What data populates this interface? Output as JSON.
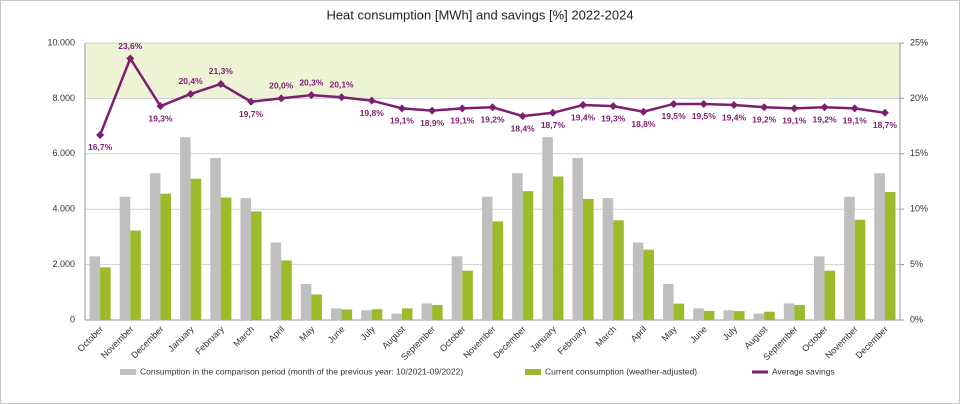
{
  "chart_data": {
    "type": "bar_line",
    "title": "Heat consumption [MWh] and savings [%] 2022-2024",
    "categories": [
      "October",
      "November",
      "December",
      "January",
      "February",
      "March",
      "April",
      "May",
      "June",
      "July",
      "August",
      "September",
      "October",
      "November",
      "December",
      "January",
      "February",
      "March",
      "April",
      "May",
      "June",
      "July",
      "August",
      "September",
      "October",
      "November",
      "December"
    ],
    "series": [
      {
        "name": "Consumption in the comparison period (month of the previous year: 10/2021-09/2022)",
        "color": "#bfbfbf",
        "type": "bar",
        "values": [
          2300,
          4450,
          5300,
          6600,
          5850,
          4400,
          2800,
          1300,
          420,
          350,
          230,
          600,
          2300,
          4450,
          5300,
          6600,
          5850,
          4400,
          2800,
          1300,
          420,
          350,
          230,
          600,
          2300,
          4450,
          5300
        ]
      },
      {
        "name": "Current consumption (weather-adjusted)",
        "color": "#9bbb2a",
        "type": "bar",
        "values": [
          1900,
          3230,
          4560,
          5100,
          4420,
          3920,
          2150,
          920,
          380,
          390,
          420,
          540,
          1780,
          3560,
          4650,
          5180,
          4370,
          3600,
          2540,
          590,
          330,
          320,
          300,
          540,
          1780,
          3620,
          4620
        ]
      },
      {
        "name": "Average savings",
        "color": "#7b1f6e",
        "type": "line",
        "axis": "y2",
        "values": [
          16.7,
          23.6,
          19.3,
          20.4,
          21.3,
          19.7,
          20.0,
          20.3,
          20.1,
          19.8,
          19.1,
          18.9,
          19.1,
          19.2,
          18.4,
          18.7,
          19.4,
          19.3,
          18.8,
          19.5,
          19.5,
          19.4,
          19.2,
          19.1,
          19.2,
          19.1,
          18.7
        ],
        "value_labels": [
          "16,7%",
          "23,6%",
          "19,3%",
          "20,4%",
          "21,3%",
          "19,7%",
          "20,0%",
          "20,3%",
          "20,1%",
          "19,8%",
          "19,1%",
          "18,9%",
          "19,1%",
          "19,2%",
          "18,4%",
          "18,7%",
          "19,4%",
          "19,3%",
          "18,8%",
          "19,5%",
          "19,5%",
          "19,4%",
          "19,2%",
          "19,1%",
          "19,2%",
          "19,1%",
          "18,7%"
        ]
      }
    ],
    "ylim": [
      0,
      10000
    ],
    "yticks": [
      0,
      {
        "value": 2000,
        "label": "2.000"
      },
      {
        "value": 4000,
        "label": "4.000"
      },
      {
        "value": 6000,
        "label": "6.000"
      },
      {
        "value": 8000,
        "label": "8.000"
      },
      {
        "value": 10000,
        "label": "10.000"
      }
    ],
    "y2lim": [
      0,
      25
    ],
    "y2ticks": [
      {
        "value": 0,
        "label": "0%"
      },
      {
        "value": 5,
        "label": "5%"
      },
      {
        "value": 10,
        "label": "10%"
      },
      {
        "value": 15,
        "label": "15%"
      },
      {
        "value": 20,
        "label": "20%"
      },
      {
        "value": 25,
        "label": "25%"
      }
    ],
    "grid": true
  }
}
